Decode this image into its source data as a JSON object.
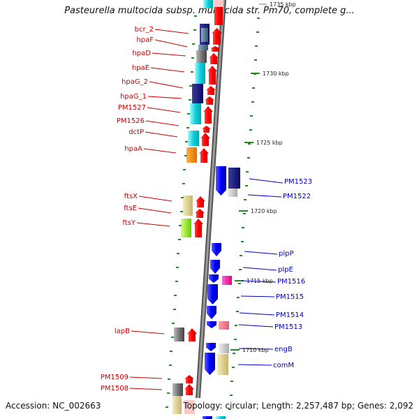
{
  "title": "Pasteurella multocida subsp. multocida str. Pm70, complete g...",
  "footer": {
    "accession": "Accession: NC_002663",
    "summary": "Topology: circular; Length: 2,257,487 bp; Genes: 2,092"
  },
  "scale_labels": [
    "1735 kbp",
    "1730 kbp",
    "1725 kbp",
    "1720 kbp",
    "1715 kbp",
    "1710 kbp"
  ],
  "left_genes": [
    "bcr_2",
    "hpaF",
    "hpaD",
    "hpaE",
    "hpaG_2",
    "hpaG_1",
    "PM1527",
    "PM1526",
    "dctP",
    "hpaA",
    "ftsX",
    "ftsE",
    "ftsY",
    "lapB",
    "PM1509",
    "PM1508"
  ],
  "right_genes": [
    "PM1523",
    "PM1522",
    "plpP",
    "plpE",
    "PM1516",
    "PM1515",
    "PM1514",
    "PM1513",
    "engB",
    "comM"
  ],
  "colors": {
    "left_label": "#cc0000",
    "right_label": "#0000cc",
    "forward_arrow": "#ff0000",
    "reverse_arrow": "#0000ff",
    "tick": "#228b22"
  }
}
